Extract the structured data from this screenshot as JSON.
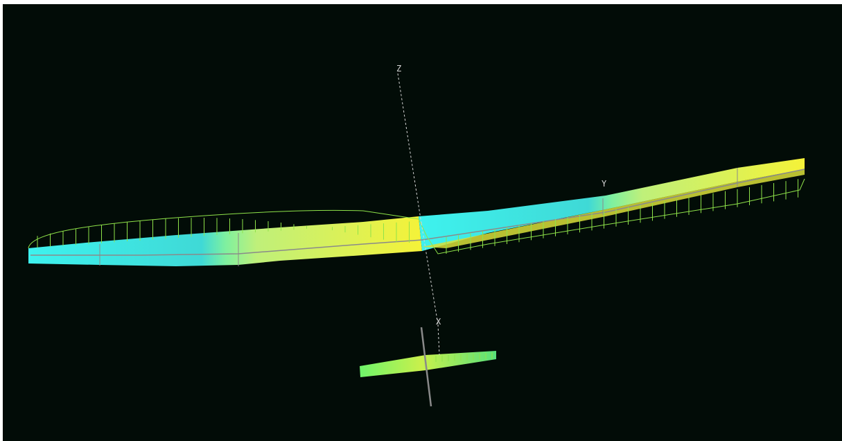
{
  "viewport": {
    "background": "#020c07",
    "axes": {
      "x_label": "X",
      "y_label": "Y",
      "z_label": "Z",
      "color": "#d6d6d6"
    },
    "colors": {
      "wing_left": "#3ef2ee",
      "wing_right": "#f5f238",
      "outline": "#8fe34a",
      "chord_line": "#8a8a8a"
    }
  }
}
